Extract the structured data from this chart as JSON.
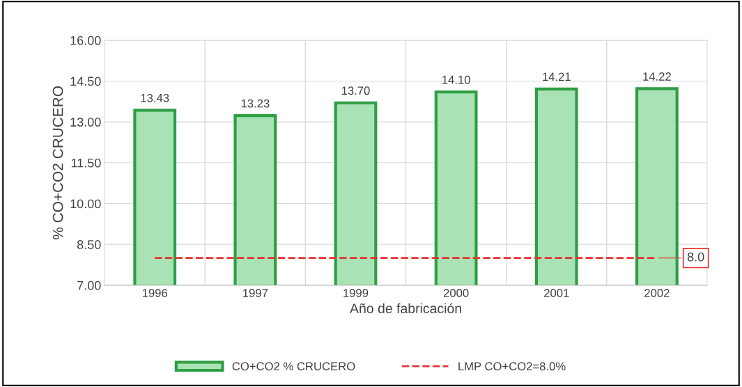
{
  "chart_data": {
    "type": "bar",
    "xlabel": "Año de fabricación",
    "ylabel": "% CO+CO2 CRUCERO",
    "categories": [
      "1996",
      "1997",
      "1999",
      "2000",
      "2001",
      "2002"
    ],
    "series": [
      {
        "name": "CO+CO2 % CRUCERO",
        "color": "#a9e2b4",
        "values": [
          13.43,
          13.23,
          13.7,
          14.1,
          14.21,
          14.22
        ],
        "value_labels": [
          "13.43",
          "13.23",
          "13.70",
          "14.10",
          "14.21",
          "14.22"
        ]
      },
      {
        "name": "LMP CO+CO2=8.0%",
        "type": "line",
        "color": "#e8312e",
        "line_style": "dashed",
        "values": [
          8.0,
          8.0,
          8.0,
          8.0,
          8.0,
          8.0
        ],
        "value_labels": [
          null,
          null,
          null,
          null,
          null,
          "8.0"
        ]
      }
    ],
    "ylim": [
      7,
      16
    ],
    "yticks": [
      {
        "value": 7,
        "label": "7.00"
      },
      {
        "value": 8.5,
        "label": "8.50"
      },
      {
        "value": 10,
        "label": "10.00"
      },
      {
        "value": 11.5,
        "label": "11.50"
      },
      {
        "value": 13,
        "label": "13.00"
      },
      {
        "value": 14.5,
        "label": "14.50"
      },
      {
        "value": 16,
        "label": "16.00"
      }
    ],
    "grid": true,
    "legend": "bottom"
  }
}
